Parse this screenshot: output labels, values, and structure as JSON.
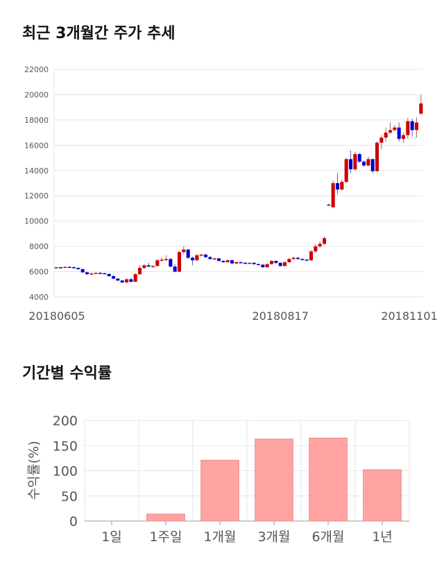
{
  "titles": {
    "price_trend": "최근 3개월간 주가 추세",
    "period_returns": "기간별 수익률"
  },
  "colors": {
    "up": "#cc0000",
    "down": "#0000cc",
    "bar": "#ffa3a3",
    "bar_border": "#e88b8b",
    "grid": "#e6e6e6"
  },
  "chart_data": [
    {
      "type": "candlestick",
      "title": "최근 3개월간 주가 추세",
      "ylim": [
        4000,
        22000
      ],
      "yticks": [
        4000,
        6000,
        8000,
        10000,
        12000,
        14000,
        16000,
        18000,
        20000,
        22000
      ],
      "x_labels": [
        {
          "label": "20180605",
          "index": 0
        },
        {
          "label": "20180817",
          "index": 51
        },
        {
          "label": "20181101",
          "index": 102
        }
      ],
      "grid": true,
      "candles": [
        [
          6300,
          6350,
          6250,
          6350
        ],
        [
          6350,
          6380,
          6300,
          6320
        ],
        [
          6320,
          6400,
          6280,
          6380
        ],
        [
          6380,
          6420,
          6320,
          6350
        ],
        [
          6350,
          6400,
          6280,
          6300
        ],
        [
          6300,
          6320,
          6150,
          6200
        ],
        [
          6200,
          6250,
          5900,
          5950
        ],
        [
          5950,
          6000,
          5750,
          5800
        ],
        [
          5800,
          5900,
          5750,
          5850
        ],
        [
          5850,
          5950,
          5820,
          5900
        ],
        [
          5900,
          5950,
          5820,
          5880
        ],
        [
          5880,
          5900,
          5800,
          5820
        ],
        [
          5820,
          5850,
          5600,
          5650
        ],
        [
          5650,
          5700,
          5400,
          5450
        ],
        [
          5450,
          5500,
          5250,
          5300
        ],
        [
          5300,
          5350,
          5100,
          5150
        ],
        [
          5150,
          5450,
          5100,
          5400
        ],
        [
          5400,
          5500,
          5150,
          5200
        ],
        [
          5200,
          5900,
          5180,
          5800
        ],
        [
          5800,
          6500,
          5750,
          6300
        ],
        [
          6300,
          6600,
          6200,
          6500
        ],
        [
          6500,
          6700,
          6350,
          6400
        ],
        [
          6400,
          6500,
          6300,
          6450
        ],
        [
          6450,
          7000,
          6400,
          6900
        ],
        [
          6900,
          7100,
          6800,
          6950
        ],
        [
          6950,
          7300,
          6850,
          7000
        ],
        [
          7000,
          7100,
          6350,
          6400
        ],
        [
          6400,
          6600,
          5950,
          6000
        ],
        [
          6000,
          7650,
          5950,
          7550
        ],
        [
          7550,
          8000,
          7400,
          7750
        ],
        [
          7750,
          7800,
          7000,
          7100
        ],
        [
          7100,
          7200,
          6500,
          6900
        ],
        [
          6900,
          7400,
          6850,
          7300
        ],
        [
          7300,
          7400,
          7200,
          7350
        ],
        [
          7350,
          7400,
          7100,
          7150
        ],
        [
          7150,
          7250,
          6950,
          7000
        ],
        [
          7000,
          7100,
          6900,
          7050
        ],
        [
          7050,
          7100,
          6800,
          6850
        ],
        [
          6850,
          6900,
          6700,
          6750
        ],
        [
          6750,
          6950,
          6700,
          6900
        ],
        [
          6900,
          6950,
          6600,
          6650
        ],
        [
          6650,
          6800,
          6600,
          6750
        ],
        [
          6750,
          6800,
          6650,
          6700
        ],
        [
          6700,
          6750,
          6600,
          6650
        ],
        [
          6650,
          6750,
          6600,
          6700
        ],
        [
          6700,
          6750,
          6550,
          6600
        ],
        [
          6600,
          6650,
          6500,
          6550
        ],
        [
          6550,
          6600,
          6300,
          6350
        ],
        [
          6350,
          6650,
          6300,
          6600
        ],
        [
          6600,
          6900,
          6550,
          6850
        ],
        [
          6850,
          6900,
          6600,
          6700
        ],
        [
          6700,
          6750,
          6400,
          6450
        ],
        [
          6450,
          6800,
          6400,
          6750
        ],
        [
          6750,
          7100,
          6700,
          7000
        ],
        [
          7000,
          7200,
          6950,
          7100
        ],
        [
          7100,
          7150,
          6950,
          7000
        ],
        [
          7000,
          7050,
          6900,
          6950
        ],
        [
          6950,
          7000,
          6850,
          6900
        ],
        [
          6900,
          7700,
          6850,
          7600
        ],
        [
          7600,
          8200,
          7500,
          8000
        ],
        [
          8000,
          8400,
          7900,
          8200
        ],
        [
          8200,
          8800,
          8100,
          8650
        ],
        [
          11300,
          11400,
          11200,
          11300
        ],
        [
          11100,
          13200,
          11000,
          13000
        ],
        [
          13000,
          13800,
          12100,
          12500
        ],
        [
          12500,
          13300,
          12400,
          13100
        ],
        [
          13100,
          15000,
          13000,
          14900
        ],
        [
          14900,
          15600,
          13800,
          14100
        ],
        [
          14100,
          15500,
          14000,
          15300
        ],
        [
          15300,
          15400,
          14600,
          14700
        ],
        [
          14700,
          14800,
          14300,
          14400
        ],
        [
          14400,
          15100,
          14300,
          14900
        ],
        [
          14900,
          14950,
          13800,
          13950
        ],
        [
          13950,
          16300,
          13900,
          16200
        ],
        [
          16200,
          16800,
          15700,
          16600
        ],
        [
          16600,
          17400,
          16300,
          17000
        ],
        [
          17000,
          17800,
          16900,
          17200
        ],
        [
          17200,
          17600,
          17100,
          17400
        ],
        [
          17400,
          17800,
          16300,
          16500
        ],
        [
          16500,
          17000,
          16200,
          16800
        ],
        [
          16800,
          18200,
          16500,
          17900
        ],
        [
          17900,
          18100,
          16700,
          17200
        ],
        [
          17200,
          18200,
          16600,
          17800
        ],
        [
          18500,
          20000,
          18400,
          19300
        ]
      ]
    },
    {
      "type": "bar",
      "title": "기간별 수익률",
      "categories": [
        "1일",
        "1주일",
        "1개월",
        "3개월",
        "6개월",
        "1년"
      ],
      "values": [
        0,
        14,
        121,
        163,
        165,
        102
      ],
      "ylabel": "수익률(%)",
      "ylim": [
        0,
        200
      ],
      "yticks": [
        0,
        50,
        100,
        150,
        200
      ],
      "grid": true
    }
  ]
}
